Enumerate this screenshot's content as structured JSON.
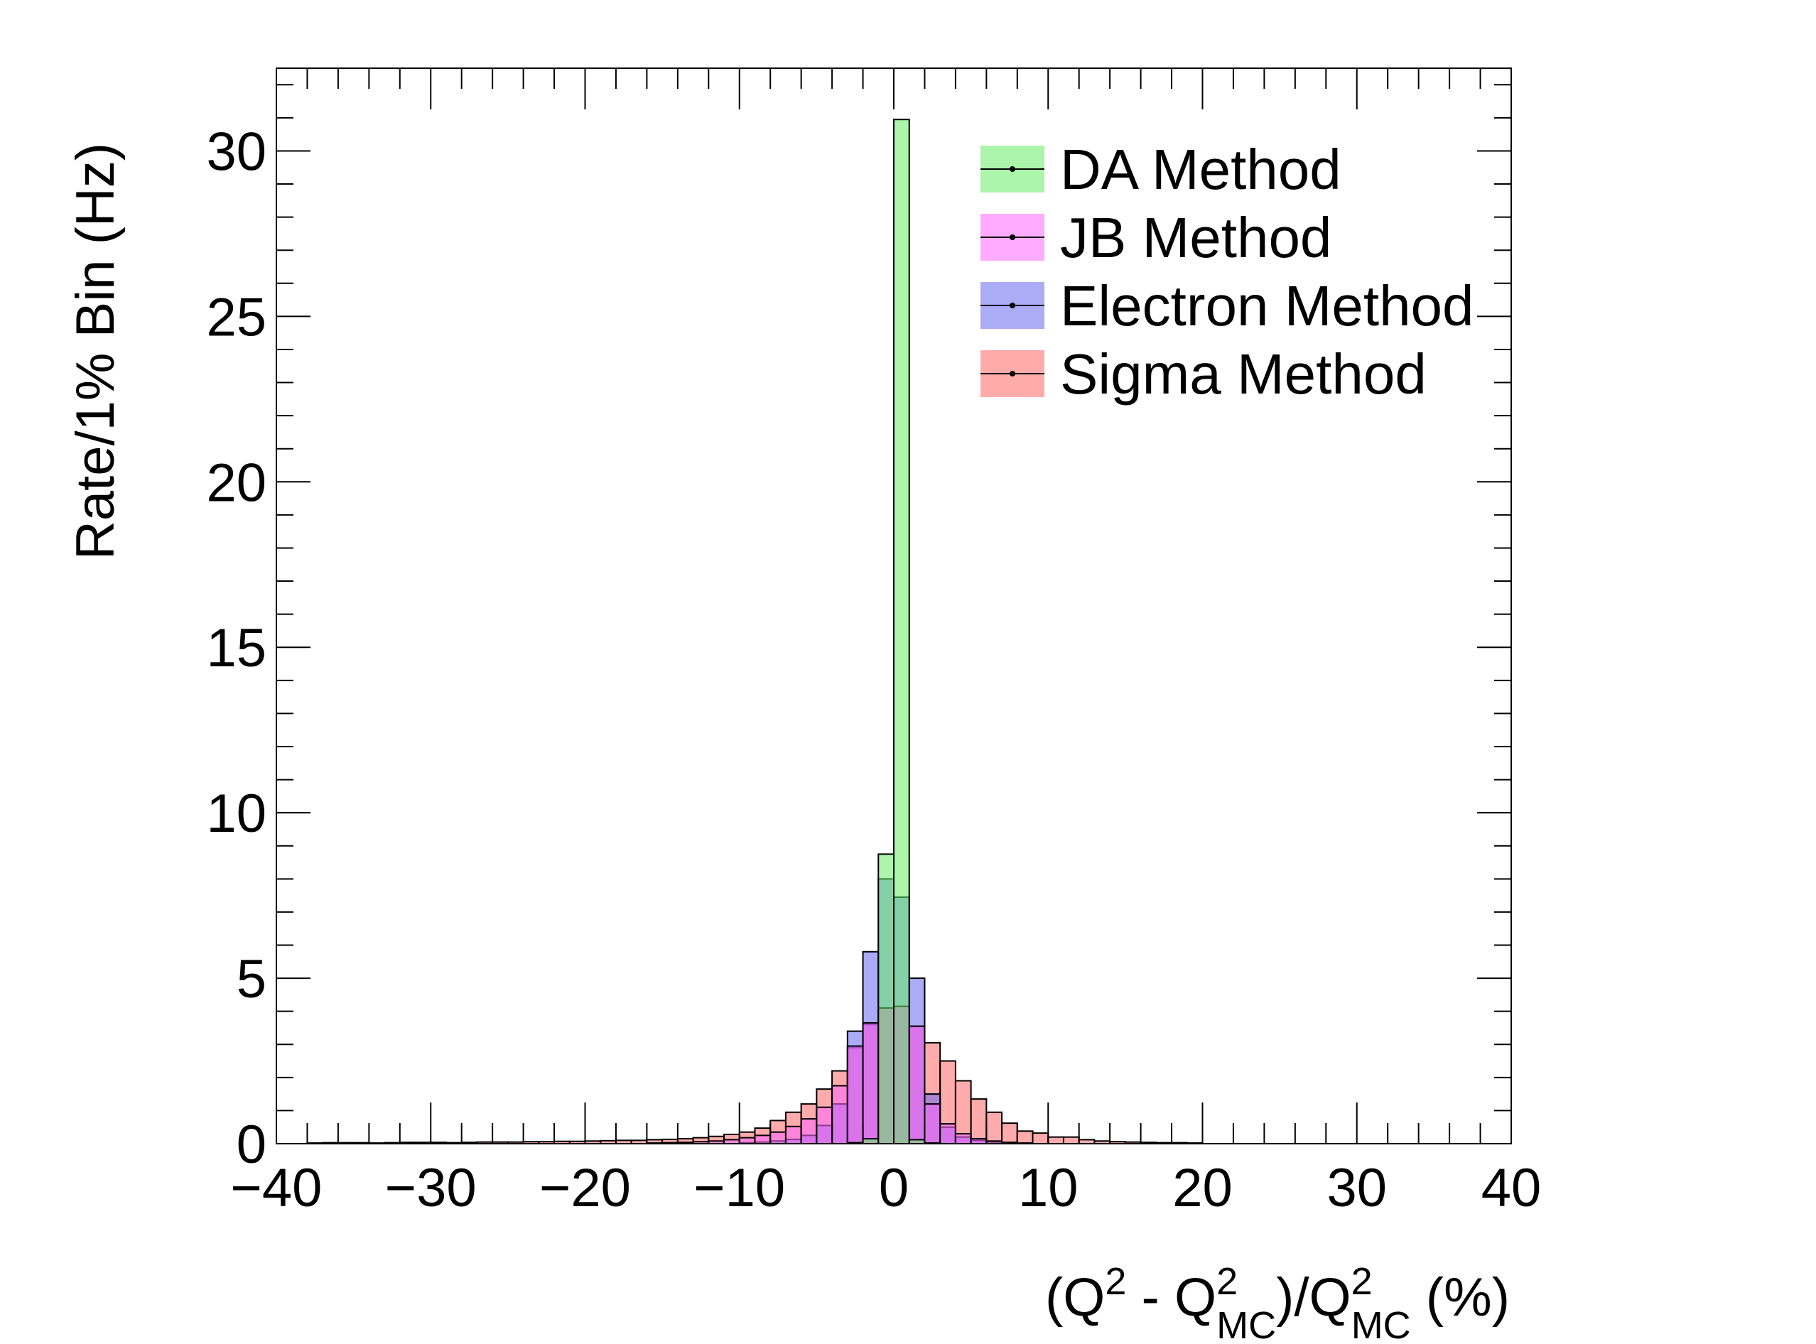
{
  "chart_data": {
    "type": "bar",
    "xlabel": {
      "prefix": "(Q",
      "sup1": "2",
      "mid1": " - Q",
      "sup2": "2",
      "sub2": "MC",
      "mid2": ")/Q",
      "sup3": "2",
      "sub3": "MC",
      "suffix": " (%)"
    },
    "ylabel": "Rate/1% Bin (Hz)",
    "xlim": [
      -40,
      40
    ],
    "ylim": [
      0,
      32.5
    ],
    "bin_width": 1,
    "x_ticks": [
      -40,
      -30,
      -20,
      -10,
      0,
      10,
      20,
      30,
      40
    ],
    "x_tick_labels": [
      "−40",
      "−30",
      "−20",
      "−10",
      "0",
      "10",
      "20",
      "30",
      "40"
    ],
    "y_ticks": [
      0,
      5,
      10,
      15,
      20,
      25,
      30
    ],
    "y_tick_labels": [
      "0",
      "5",
      "10",
      "15",
      "20",
      "25",
      "30"
    ],
    "grid": false,
    "legend_position": "top-right",
    "series": [
      {
        "name": "Sigma Method",
        "color": "#ff6666",
        "bins": [
          {
            "x": -37,
            "y": 0.02
          },
          {
            "x": -36,
            "y": 0.03
          },
          {
            "x": -35,
            "y": 0.03
          },
          {
            "x": -34,
            "y": 0.03
          },
          {
            "x": -33,
            "y": 0.02
          },
          {
            "x": -32,
            "y": 0.03
          },
          {
            "x": -31,
            "y": 0.04
          },
          {
            "x": -30,
            "y": 0.04
          },
          {
            "x": -29,
            "y": 0.04
          },
          {
            "x": -28,
            "y": 0.03
          },
          {
            "x": -27,
            "y": 0.04
          },
          {
            "x": -26,
            "y": 0.05
          },
          {
            "x": -25,
            "y": 0.05
          },
          {
            "x": -24,
            "y": 0.05
          },
          {
            "x": -23,
            "y": 0.06
          },
          {
            "x": -22,
            "y": 0.06
          },
          {
            "x": -21,
            "y": 0.07
          },
          {
            "x": -20,
            "y": 0.07
          },
          {
            "x": -19,
            "y": 0.08
          },
          {
            "x": -18,
            "y": 0.09
          },
          {
            "x": -17,
            "y": 0.1
          },
          {
            "x": -16,
            "y": 0.1
          },
          {
            "x": -15,
            "y": 0.12
          },
          {
            "x": -14,
            "y": 0.13
          },
          {
            "x": -13,
            "y": 0.15
          },
          {
            "x": -12,
            "y": 0.18
          },
          {
            "x": -11,
            "y": 0.22
          },
          {
            "x": -10,
            "y": 0.28
          },
          {
            "x": -9,
            "y": 0.35
          },
          {
            "x": -8,
            "y": 0.47
          },
          {
            "x": -7,
            "y": 0.7
          },
          {
            "x": -6,
            "y": 0.95
          },
          {
            "x": -5,
            "y": 1.2
          },
          {
            "x": -4,
            "y": 1.65
          },
          {
            "x": -3,
            "y": 2.2
          },
          {
            "x": -2,
            "y": 2.9
          },
          {
            "x": -1,
            "y": 3.6
          },
          {
            "x": 0,
            "y": 4.1
          },
          {
            "x": 1,
            "y": 4.15
          },
          {
            "x": 2,
            "y": 3.55
          },
          {
            "x": 3,
            "y": 3.05
          },
          {
            "x": 4,
            "y": 2.5
          },
          {
            "x": 5,
            "y": 1.9
          },
          {
            "x": 6,
            "y": 1.35
          },
          {
            "x": 7,
            "y": 0.95
          },
          {
            "x": 8,
            "y": 0.62
          },
          {
            "x": 9,
            "y": 0.38
          },
          {
            "x": 10,
            "y": 0.32
          },
          {
            "x": 11,
            "y": 0.2
          },
          {
            "x": 12,
            "y": 0.2
          },
          {
            "x": 13,
            "y": 0.12
          },
          {
            "x": 14,
            "y": 0.08
          },
          {
            "x": 15,
            "y": 0.06
          },
          {
            "x": 16,
            "y": 0.05
          },
          {
            "x": 17,
            "y": 0.04
          },
          {
            "x": 18,
            "y": 0.03
          },
          {
            "x": 19,
            "y": 0.03
          },
          {
            "x": 20,
            "y": 0.02
          }
        ]
      },
      {
        "name": "Electron Method",
        "color": "#6666ee",
        "bins": [
          {
            "x": -9,
            "y": 0.03
          },
          {
            "x": -8,
            "y": 0.05
          },
          {
            "x": -7,
            "y": 0.08
          },
          {
            "x": -6,
            "y": 0.13
          },
          {
            "x": -5,
            "y": 0.25
          },
          {
            "x": -4,
            "y": 0.55
          },
          {
            "x": -3,
            "y": 1.2
          },
          {
            "x": -2,
            "y": 3.4
          },
          {
            "x": -1,
            "y": 5.8
          },
          {
            "x": 0,
            "y": 8.0
          },
          {
            "x": 1,
            "y": 7.45
          },
          {
            "x": 2,
            "y": 5.0
          },
          {
            "x": 3,
            "y": 1.5
          },
          {
            "x": 4,
            "y": 0.5
          },
          {
            "x": 5,
            "y": 0.2
          },
          {
            "x": 6,
            "y": 0.1
          },
          {
            "x": 7,
            "y": 0.05
          },
          {
            "x": 8,
            "y": 0.03
          }
        ]
      },
      {
        "name": "JB Method",
        "color": "#ff66ff",
        "bins": [
          {
            "x": -15,
            "y": 0.02
          },
          {
            "x": -14,
            "y": 0.03
          },
          {
            "x": -13,
            "y": 0.04
          },
          {
            "x": -12,
            "y": 0.06
          },
          {
            "x": -11,
            "y": 0.08
          },
          {
            "x": -10,
            "y": 0.12
          },
          {
            "x": -9,
            "y": 0.18
          },
          {
            "x": -8,
            "y": 0.25
          },
          {
            "x": -7,
            "y": 0.35
          },
          {
            "x": -6,
            "y": 0.52
          },
          {
            "x": -5,
            "y": 0.75
          },
          {
            "x": -4,
            "y": 1.1
          },
          {
            "x": -3,
            "y": 1.75
          },
          {
            "x": -2,
            "y": 2.95
          },
          {
            "x": -1,
            "y": 3.65
          },
          {
            "x": 0,
            "y": 4.1
          },
          {
            "x": 1,
            "y": 4.15
          },
          {
            "x": 2,
            "y": 3.55
          },
          {
            "x": 3,
            "y": 1.2
          },
          {
            "x": 4,
            "y": 0.6
          },
          {
            "x": 5,
            "y": 0.3
          },
          {
            "x": 6,
            "y": 0.15
          },
          {
            "x": 7,
            "y": 0.08
          },
          {
            "x": 8,
            "y": 0.04
          },
          {
            "x": 9,
            "y": 0.02
          }
        ]
      },
      {
        "name": "DA Method",
        "color": "#66ee66",
        "bins": [
          {
            "x": -2,
            "y": 0.03
          },
          {
            "x": -1,
            "y": 0.15
          },
          {
            "x": 0,
            "y": 8.75
          },
          {
            "x": 1,
            "y": 30.95
          },
          {
            "x": 2,
            "y": 0.12
          },
          {
            "x": 3,
            "y": 0.02
          }
        ]
      }
    ],
    "legend": [
      {
        "name": "DA Method",
        "color": "#66ee66"
      },
      {
        "name": "JB Method",
        "color": "#ff66ff"
      },
      {
        "name": "Electron Method",
        "color": "#6666ee"
      },
      {
        "name": "Sigma Method",
        "color": "#ff6666"
      }
    ]
  }
}
